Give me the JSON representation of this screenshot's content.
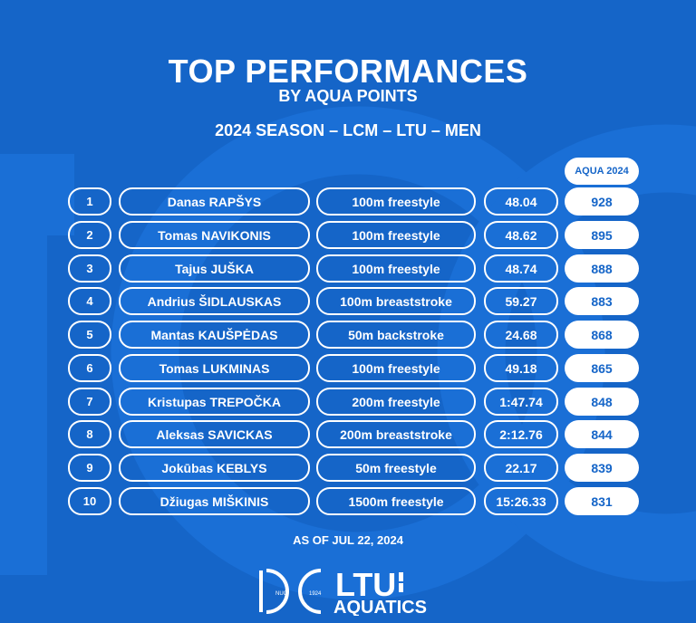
{
  "header": {
    "title": "TOP PERFORMANCES",
    "subtitle": "BY AQUA POINTS",
    "season": "2024 SEASON – LCM – LTU – MEN"
  },
  "table": {
    "points_header": "AQUA 2024",
    "rows": [
      {
        "rank": "1",
        "name": "Danas RAPŠYS",
        "event": "100m freestyle",
        "time": "48.04",
        "points": "928"
      },
      {
        "rank": "2",
        "name": "Tomas NAVIKONIS",
        "event": "100m freestyle",
        "time": "48.62",
        "points": "895"
      },
      {
        "rank": "3",
        "name": "Tajus JUŠKA",
        "event": "100m freestyle",
        "time": "48.74",
        "points": "888"
      },
      {
        "rank": "4",
        "name": "Andrius ŠIDLAUSKAS",
        "event": "100m breaststroke",
        "time": "59.27",
        "points": "883"
      },
      {
        "rank": "5",
        "name": "Mantas KAUŠPĖDAS",
        "event": "50m backstroke",
        "time": "24.68",
        "points": "868"
      },
      {
        "rank": "6",
        "name": "Tomas LUKMINAS",
        "event": "100m freestyle",
        "time": "49.18",
        "points": "865"
      },
      {
        "rank": "7",
        "name": "Kristupas TREPOČKA",
        "event": "200m freestyle",
        "time": "1:47.74",
        "points": "848"
      },
      {
        "rank": "8",
        "name": "Aleksas SAVICKAS",
        "event": "200m breaststroke",
        "time": "2:12.76",
        "points": "844"
      },
      {
        "rank": "9",
        "name": "Jokūbas KEBLYS",
        "event": "50m freestyle",
        "time": "22.17",
        "points": "839"
      },
      {
        "rank": "10",
        "name": "Džiugas MIŠKINIS",
        "event": "1500m freestyle",
        "time": "15:26.33",
        "points": "831"
      }
    ]
  },
  "footer": {
    "as_of": "AS OF JUL 22, 2024",
    "logo_text": "LTU",
    "logo_sub": "AQUATICS",
    "logo_nuo": "NUO",
    "logo_year": "1924"
  },
  "colors": {
    "background": "#1565c8",
    "watermark": "#1a6fd6",
    "text": "#ffffff"
  }
}
